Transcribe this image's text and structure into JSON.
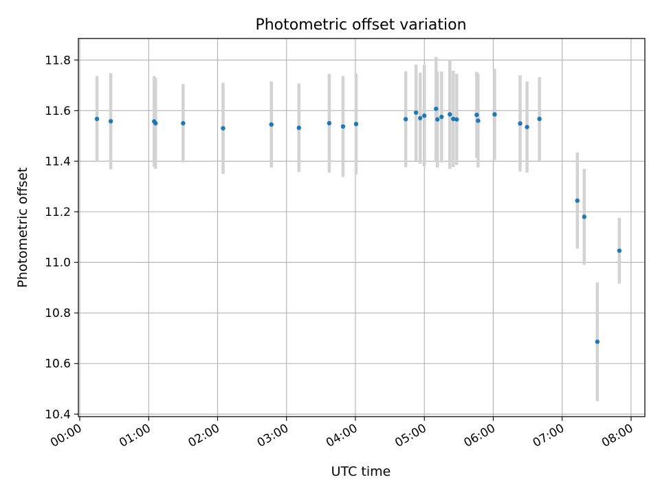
{
  "chart_data": {
    "type": "scatter",
    "title": "Photometric offset variation",
    "xlabel": "UTC time",
    "ylabel": "Photometric offset",
    "x_unit": "hours UTC",
    "xlim": [
      -0.02,
      8.2
    ],
    "ylim": [
      10.39,
      11.885
    ],
    "x_ticks": [
      0,
      1,
      2,
      3,
      4,
      5,
      6,
      7,
      8
    ],
    "x_tick_labels": [
      "00:00",
      "01:00",
      "02:00",
      "03:00",
      "04:00",
      "05:00",
      "06:00",
      "07:00",
      "08:00"
    ],
    "y_ticks": [
      10.4,
      10.6,
      10.8,
      11.0,
      11.2,
      11.4,
      11.6,
      11.8
    ],
    "y_tick_labels": [
      "10.4",
      "10.6",
      "10.8",
      "11.0",
      "11.2",
      "11.4",
      "11.6",
      "11.8"
    ],
    "grid": true,
    "colors": {
      "point": "#1f77b4",
      "errorbar": "#d3d3d3",
      "grid": "#b0b0b0"
    },
    "points": [
      {
        "x": 0.25,
        "y": 11.567,
        "err": 0.17
      },
      {
        "x": 0.45,
        "y": 11.558,
        "err": 0.19
      },
      {
        "x": 1.08,
        "y": 11.557,
        "err": 0.18
      },
      {
        "x": 1.1,
        "y": 11.55,
        "err": 0.18
      },
      {
        "x": 1.5,
        "y": 11.55,
        "err": 0.155
      },
      {
        "x": 2.08,
        "y": 11.53,
        "err": 0.18
      },
      {
        "x": 2.78,
        "y": 11.545,
        "err": 0.17
      },
      {
        "x": 3.18,
        "y": 11.532,
        "err": 0.175
      },
      {
        "x": 3.62,
        "y": 11.55,
        "err": 0.195
      },
      {
        "x": 3.82,
        "y": 11.537,
        "err": 0.2
      },
      {
        "x": 4.01,
        "y": 11.547,
        "err": 0.2
      },
      {
        "x": 4.73,
        "y": 11.566,
        "err": 0.19
      },
      {
        "x": 4.88,
        "y": 11.592,
        "err": 0.19
      },
      {
        "x": 4.94,
        "y": 11.57,
        "err": 0.18
      },
      {
        "x": 5.0,
        "y": 11.58,
        "err": 0.2
      },
      {
        "x": 5.17,
        "y": 11.607,
        "err": 0.205
      },
      {
        "x": 5.19,
        "y": 11.565,
        "err": 0.19
      },
      {
        "x": 5.25,
        "y": 11.575,
        "err": 0.18
      },
      {
        "x": 5.37,
        "y": 11.585,
        "err": 0.215
      },
      {
        "x": 5.42,
        "y": 11.567,
        "err": 0.19
      },
      {
        "x": 5.47,
        "y": 11.565,
        "err": 0.18
      },
      {
        "x": 5.76,
        "y": 11.583,
        "err": 0.17
      },
      {
        "x": 5.78,
        "y": 11.56,
        "err": 0.185
      },
      {
        "x": 6.02,
        "y": 11.585,
        "err": 0.18
      },
      {
        "x": 6.39,
        "y": 11.549,
        "err": 0.19
      },
      {
        "x": 6.49,
        "y": 11.535,
        "err": 0.18
      },
      {
        "x": 6.67,
        "y": 11.567,
        "err": 0.165
      },
      {
        "x": 7.22,
        "y": 11.244,
        "err": 0.19
      },
      {
        "x": 7.32,
        "y": 11.18,
        "err": 0.19
      },
      {
        "x": 7.51,
        "y": 10.686,
        "err": 0.235
      },
      {
        "x": 7.83,
        "y": 11.046,
        "err": 0.13
      }
    ]
  }
}
